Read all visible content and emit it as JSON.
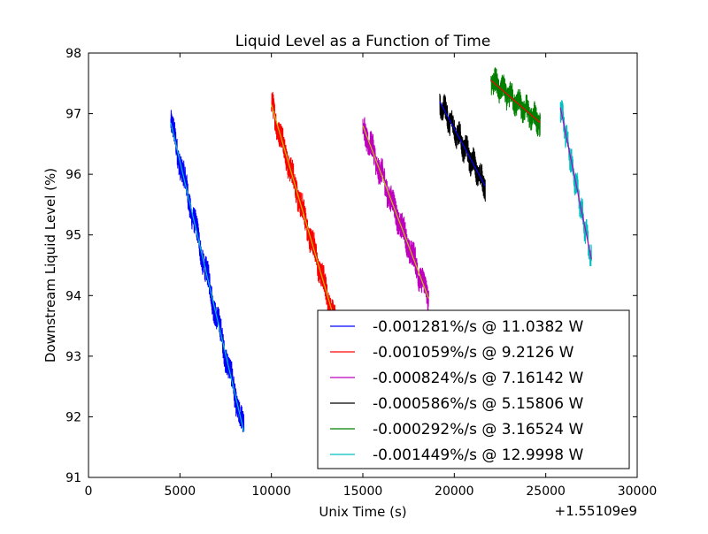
{
  "chart_data": {
    "type": "line",
    "title": "Liquid Level as a Function of Time",
    "xlabel": "Unix Time (s)",
    "ylabel": "Downstream Liquid Level (%)",
    "x_offset_label": "+1.55109e9",
    "xlim": [
      0,
      30000
    ],
    "ylim": [
      91,
      98
    ],
    "xticks": [
      0,
      5000,
      10000,
      15000,
      20000,
      25000,
      30000
    ],
    "yticks": [
      91,
      92,
      93,
      94,
      95,
      96,
      97,
      98
    ],
    "grid": false,
    "legend_position": "lower-right",
    "series": [
      {
        "name": "-0.001281%/s @ 11.0382 W",
        "color": "#0000ff",
        "fit_color": "#00bfbf",
        "x": [
          4500,
          8500
        ],
        "y": [
          96.85,
          91.75
        ],
        "noise": 0.22
      },
      {
        "name": "-0.001059%/s @ 9.2126 W",
        "color": "#ff0000",
        "fit_color": "#bfbf00",
        "x": [
          10000,
          13600
        ],
        "y": [
          97.15,
          93.45
        ],
        "noise": 0.22
      },
      {
        "name": "-0.000824%/s @ 7.16142 W",
        "color": "#bf00bf",
        "fit_color": "#bfbf00",
        "x": [
          15000,
          18600
        ],
        "y": [
          96.8,
          93.95
        ],
        "noise": 0.22
      },
      {
        "name": "-0.000586%/s @ 5.15806 W",
        "color": "#000000",
        "fit_color": "#0000ff",
        "x": [
          19200,
          21700
        ],
        "y": [
          97.2,
          95.8
        ],
        "noise": 0.2
      },
      {
        "name": "-0.000292%/s @ 3.16524 W",
        "color": "#008000",
        "fit_color": "#ff0000",
        "x": [
          22000,
          24700
        ],
        "y": [
          97.55,
          96.85
        ],
        "noise": 0.2
      },
      {
        "name": "-0.001449%/s @ 12.9998 W",
        "color": "#00bfbf",
        "fit_color": "#bf00bf",
        "x": [
          25800,
          27500
        ],
        "y": [
          97.1,
          94.6
        ],
        "noise": 0.2
      }
    ]
  }
}
